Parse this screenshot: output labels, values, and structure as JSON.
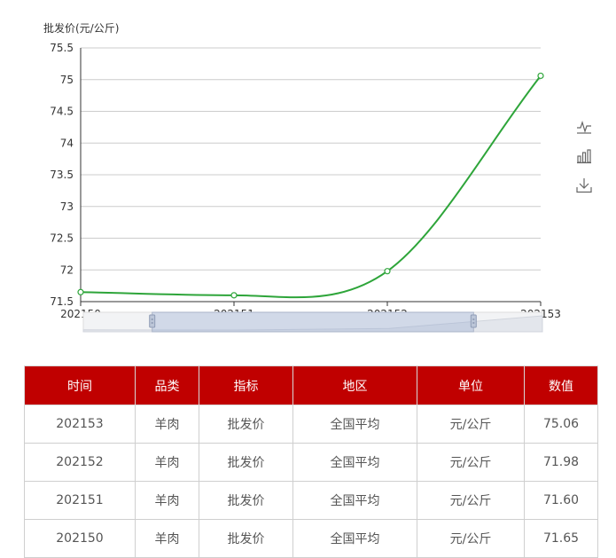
{
  "chart_data": {
    "type": "line",
    "ylabel": "批发价(元/公斤)",
    "categories": [
      "202150",
      "202151",
      "202152",
      "202153"
    ],
    "series": [
      {
        "name": "",
        "values": [
          71.65,
          71.6,
          71.98,
          75.06
        ],
        "color": "#2ea53a"
      }
    ],
    "ylim": [
      71.5,
      75.5
    ],
    "yticks": [
      "71.5",
      "72",
      "72.5",
      "73",
      "73.5",
      "74",
      "74.5",
      "75",
      "75.5"
    ],
    "grid": true,
    "datazoom": {
      "start": 0.15,
      "end": 0.85
    }
  },
  "toolbox": [
    "line-chart-icon",
    "bar-chart-icon",
    "download-icon"
  ],
  "table": {
    "headers": [
      "时间",
      "品类",
      "指标",
      "地区",
      "单位",
      "数值"
    ],
    "rows": [
      [
        "202153",
        "羊肉",
        "批发价",
        "全国平均",
        "元/公斤",
        "75.06"
      ],
      [
        "202152",
        "羊肉",
        "批发价",
        "全国平均",
        "元/公斤",
        "71.98"
      ],
      [
        "202151",
        "羊肉",
        "批发价",
        "全国平均",
        "元/公斤",
        "71.60"
      ],
      [
        "202150",
        "羊肉",
        "批发价",
        "全国平均",
        "元/公斤",
        "71.65"
      ]
    ]
  },
  "colors": {
    "header_bg": "#c00000",
    "line": "#2ea53a"
  }
}
